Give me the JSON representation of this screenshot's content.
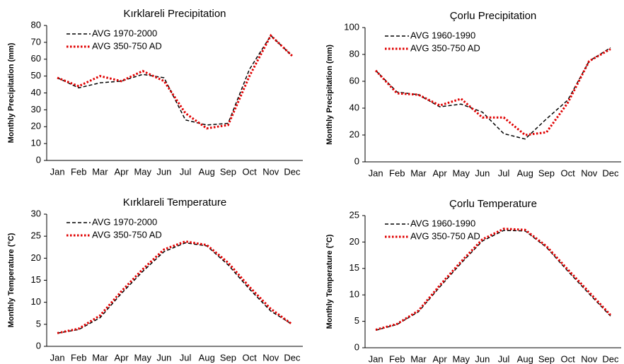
{
  "chart_data": [
    {
      "type": "line",
      "title": "Kırklareli Precipitation",
      "y_label": "Monthly Precipitation (mm)",
      "categories": [
        "Jan",
        "Feb",
        "Mar",
        "Apr",
        "May",
        "Jun",
        "Jul",
        "Aug",
        "Sep",
        "Oct",
        "Nov",
        "Dec"
      ],
      "ylim": [
        0,
        80
      ],
      "yticks": [
        0,
        10,
        20,
        30,
        40,
        50,
        60,
        70,
        80
      ],
      "legend": "upper left",
      "series": [
        {
          "name": "AVG 1970-2000",
          "color": "#000000",
          "dash": "dashed",
          "values": [
            49,
            43,
            46,
            47,
            51,
            49,
            24,
            21,
            22,
            54,
            74,
            62
          ]
        },
        {
          "name": "AVG 350-750 AD",
          "color": "#e00000",
          "dash": "dotted",
          "values": [
            49,
            44,
            50,
            47,
            53,
            47,
            28,
            19,
            21,
            50,
            74,
            62
          ]
        }
      ]
    },
    {
      "type": "line",
      "title": "Çorlu Precipitation",
      "y_label": "Monthly Precipitation (mm)",
      "categories": [
        "Jan",
        "Feb",
        "Mar",
        "Apr",
        "May",
        "Jun",
        "Jul",
        "Aug",
        "Sep",
        "Oct",
        "Nov",
        "Dec"
      ],
      "ylim": [
        0,
        100
      ],
      "yticks": [
        0,
        20,
        40,
        60,
        80,
        100
      ],
      "legend": "upper left",
      "series": [
        {
          "name": "AVG 1960-1990",
          "color": "#000000",
          "dash": "dashed",
          "values": [
            68,
            52,
            50,
            41,
            43,
            37,
            21,
            17,
            32,
            46,
            75,
            85
          ]
        },
        {
          "name": "AVG 350-750 AD",
          "color": "#e00000",
          "dash": "dotted",
          "values": [
            68,
            51,
            50,
            42,
            47,
            33,
            33,
            20,
            22,
            44,
            75,
            84
          ]
        }
      ]
    },
    {
      "type": "line",
      "title": "Kırklareli Temperature",
      "y_label": "Monthly Temperature (°C)",
      "categories": [
        "Jan",
        "Feb",
        "Mar",
        "Apr",
        "May",
        "Jun",
        "Jul",
        "Aug",
        "Sep",
        "Oct",
        "Nov",
        "Dec"
      ],
      "ylim": [
        0,
        30
      ],
      "yticks": [
        0,
        5,
        10,
        15,
        20,
        25,
        30
      ],
      "legend": "upper left",
      "series": [
        {
          "name": "AVG 1970-2000",
          "color": "#000000",
          "dash": "dashed",
          "values": [
            3,
            3.8,
            6.5,
            12,
            17,
            21.5,
            23.5,
            22.8,
            18.5,
            13,
            8,
            5
          ]
        },
        {
          "name": "AVG 350-750 AD",
          "color": "#e00000",
          "dash": "dotted",
          "values": [
            3,
            4,
            7,
            12.5,
            17.5,
            22,
            23.8,
            23,
            19,
            13.5,
            8.5,
            5
          ]
        }
      ]
    },
    {
      "type": "line",
      "title": "Çorlu Temperature",
      "y_label": "Monthly Temperature (°C)",
      "categories": [
        "Jan",
        "Feb",
        "Mar",
        "Apr",
        "May",
        "Jun",
        "Jul",
        "Aug",
        "Sep",
        "Oct",
        "Nov",
        "Dec"
      ],
      "ylim": [
        0,
        25
      ],
      "yticks": [
        0,
        5,
        10,
        15,
        20,
        25
      ],
      "legend": "upper left",
      "series": [
        {
          "name": "AVG 1960-1990",
          "color": "#000000",
          "dash": "dashed",
          "values": [
            3.3,
            4.4,
            6.8,
            11.5,
            16,
            20.2,
            22.2,
            22.1,
            19,
            14.5,
            10.2,
            6
          ]
        },
        {
          "name": "AVG 350-750 AD",
          "color": "#e00000",
          "dash": "dotted",
          "values": [
            3.4,
            4.5,
            7,
            11.8,
            16.3,
            20.5,
            22.5,
            22.3,
            19.2,
            14.8,
            10.5,
            6.2
          ]
        }
      ]
    }
  ]
}
